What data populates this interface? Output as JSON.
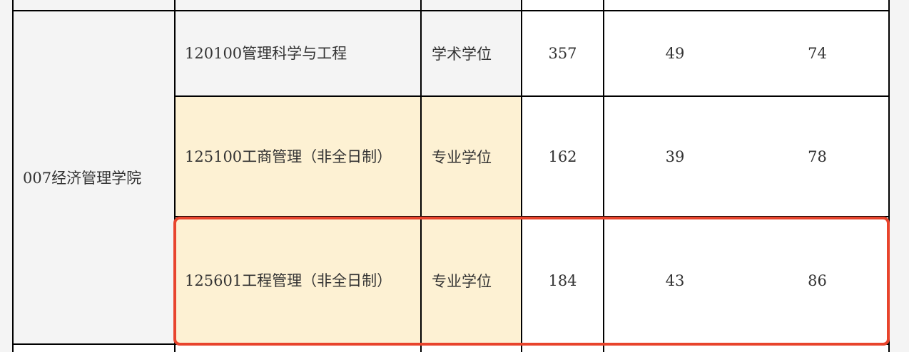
{
  "department": "007经济管理学院",
  "rows": [
    {
      "major": "120100管理科学与工程",
      "degree_type": "学术学位",
      "v1": "357",
      "v2": "49",
      "v3": "74"
    },
    {
      "major": "125100工商管理（非全日制）",
      "degree_type": "专业学位",
      "v1": "162",
      "v2": "39",
      "v3": "78"
    },
    {
      "major": "125601工程管理（非全日制）",
      "degree_type": "专业学位",
      "v1": "184",
      "v2": "43",
      "v3": "86"
    }
  ],
  "highlight_color": "#e8442c",
  "highlighted_row": 2
}
